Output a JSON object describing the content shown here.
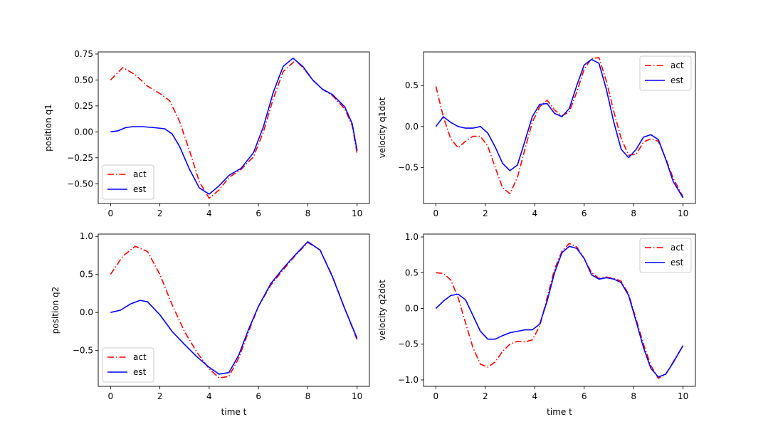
{
  "chart_data": [
    {
      "type": "line",
      "title": "",
      "xlabel": "",
      "ylabel": "position q1",
      "xlim": [
        -0.5,
        10.5
      ],
      "ylim": [
        -0.69,
        0.77
      ],
      "xticks": [
        0,
        2,
        4,
        6,
        8,
        10
      ],
      "xtick_labels": [
        "0",
        "2",
        "4",
        "6",
        "8",
        "10"
      ],
      "yticks": [
        -0.5,
        -0.25,
        0.0,
        0.25,
        0.5,
        0.75
      ],
      "ytick_labels": [
        "−0.50",
        "−0.25",
        "0.00",
        "0.25",
        "0.50",
        "0.75"
      ],
      "grid": false,
      "legend": "lower-left",
      "series": [
        {
          "name": "act",
          "color": "#ff0000",
          "style": "dashdot",
          "x": [
            0,
            0.5,
            1.0,
            1.5,
            2.0,
            2.4,
            2.8,
            3.2,
            3.6,
            4.0,
            4.4,
            4.8,
            5.3,
            5.8,
            6.2,
            6.6,
            7.0,
            7.5,
            7.8,
            8.2,
            8.6,
            9.0,
            9.5,
            9.8,
            10.0
          ],
          "y": [
            0.5,
            0.62,
            0.55,
            0.44,
            0.37,
            0.3,
            0.1,
            -0.18,
            -0.48,
            -0.64,
            -0.56,
            -0.44,
            -0.36,
            -0.24,
            0.0,
            0.32,
            0.58,
            0.69,
            0.62,
            0.5,
            0.41,
            0.35,
            0.22,
            0.06,
            -0.21
          ]
        },
        {
          "name": "est",
          "color": "#0000ff",
          "style": "solid",
          "x": [
            0,
            0.3,
            0.6,
            0.9,
            1.3,
            1.8,
            2.2,
            2.5,
            2.8,
            3.2,
            3.6,
            4.0,
            4.4,
            4.8,
            5.3,
            5.8,
            6.2,
            6.6,
            7.0,
            7.4,
            7.8,
            8.2,
            8.6,
            9.0,
            9.5,
            9.8,
            10.0
          ],
          "y": [
            0.0,
            0.01,
            0.04,
            0.05,
            0.05,
            0.04,
            0.03,
            -0.02,
            -0.14,
            -0.36,
            -0.54,
            -0.6,
            -0.52,
            -0.42,
            -0.35,
            -0.2,
            0.05,
            0.38,
            0.63,
            0.71,
            0.63,
            0.5,
            0.41,
            0.36,
            0.24,
            0.08,
            -0.18
          ]
        }
      ]
    },
    {
      "type": "line",
      "title": "",
      "xlabel": "",
      "ylabel": "velocity q1dot",
      "xlim": [
        -0.5,
        10.5
      ],
      "ylim": [
        -0.94,
        0.91
      ],
      "xticks": [
        0,
        2,
        4,
        6,
        8,
        10
      ],
      "xtick_labels": [
        "0",
        "2",
        "4",
        "6",
        "8",
        "10"
      ],
      "yticks": [
        -0.5,
        0.0,
        0.5
      ],
      "ytick_labels": [
        "−0.5",
        "0.0",
        "0.5"
      ],
      "grid": false,
      "legend": "upper-right",
      "series": [
        {
          "name": "act",
          "color": "#ff0000",
          "style": "dashdot",
          "x": [
            0,
            0.3,
            0.6,
            0.9,
            1.2,
            1.5,
            1.8,
            2.1,
            2.4,
            2.7,
            3.0,
            3.3,
            3.6,
            3.9,
            4.2,
            4.5,
            4.8,
            5.1,
            5.4,
            5.7,
            6.0,
            6.3,
            6.6,
            6.9,
            7.2,
            7.5,
            7.8,
            8.1,
            8.4,
            8.7,
            9.0,
            9.3,
            9.6,
            10.0
          ],
          "y": [
            0.49,
            0.12,
            -0.15,
            -0.26,
            -0.18,
            -0.12,
            -0.12,
            -0.24,
            -0.5,
            -0.75,
            -0.82,
            -0.62,
            -0.28,
            0.05,
            0.24,
            0.32,
            0.2,
            0.13,
            0.18,
            0.42,
            0.7,
            0.83,
            0.84,
            0.55,
            0.18,
            -0.15,
            -0.35,
            -0.34,
            -0.19,
            -0.15,
            -0.18,
            -0.39,
            -0.63,
            -0.86
          ]
        },
        {
          "name": "est",
          "color": "#0000ff",
          "style": "solid",
          "x": [
            0,
            0.3,
            0.6,
            0.9,
            1.2,
            1.5,
            1.8,
            2.1,
            2.4,
            2.7,
            3.0,
            3.3,
            3.6,
            3.9,
            4.2,
            4.5,
            4.8,
            5.1,
            5.4,
            5.7,
            6.0,
            6.3,
            6.6,
            6.9,
            7.2,
            7.5,
            7.8,
            8.1,
            8.4,
            8.7,
            9.0,
            9.3,
            9.6,
            10.0
          ],
          "y": [
            0.0,
            0.12,
            0.05,
            0.0,
            -0.02,
            -0.02,
            0.0,
            -0.08,
            -0.25,
            -0.45,
            -0.54,
            -0.47,
            -0.18,
            0.12,
            0.27,
            0.28,
            0.16,
            0.12,
            0.22,
            0.5,
            0.75,
            0.82,
            0.77,
            0.45,
            0.05,
            -0.28,
            -0.38,
            -0.28,
            -0.13,
            -0.1,
            -0.16,
            -0.4,
            -0.67,
            -0.87
          ]
        }
      ]
    },
    {
      "type": "line",
      "title": "",
      "xlabel": "time t",
      "ylabel": "position q2",
      "xlim": [
        -0.5,
        10.5
      ],
      "ylim": [
        -0.97,
        1.03
      ],
      "xticks": [
        0,
        2,
        4,
        6,
        8,
        10
      ],
      "xtick_labels": [
        "0",
        "2",
        "4",
        "6",
        "8",
        "10"
      ],
      "yticks": [
        -0.5,
        0.0,
        0.5,
        1.0
      ],
      "ytick_labels": [
        "−0.5",
        "0.0",
        "0.5",
        "1.0"
      ],
      "grid": false,
      "legend": "lower-left",
      "series": [
        {
          "name": "act",
          "color": "#ff0000",
          "style": "dashdot",
          "x": [
            0,
            0.5,
            1.0,
            1.5,
            2.0,
            2.5,
            3.0,
            3.5,
            4.0,
            4.4,
            4.8,
            5.2,
            5.6,
            6.0,
            6.5,
            7.0,
            7.5,
            8.0,
            8.5,
            9.0,
            9.5,
            10.0
          ],
          "y": [
            0.5,
            0.74,
            0.87,
            0.8,
            0.5,
            0.1,
            -0.25,
            -0.52,
            -0.74,
            -0.86,
            -0.84,
            -0.6,
            -0.25,
            0.08,
            0.36,
            0.56,
            0.75,
            0.92,
            0.82,
            0.48,
            0.05,
            -0.36
          ]
        },
        {
          "name": "est",
          "color": "#0000ff",
          "style": "solid",
          "x": [
            0,
            0.4,
            0.8,
            1.2,
            1.5,
            2.0,
            2.5,
            3.0,
            3.5,
            4.0,
            4.4,
            4.8,
            5.2,
            5.6,
            6.0,
            6.5,
            7.0,
            7.5,
            8.0,
            8.5,
            9.0,
            9.5,
            10.0
          ],
          "y": [
            0.0,
            0.03,
            0.11,
            0.16,
            0.14,
            -0.03,
            -0.25,
            -0.42,
            -0.58,
            -0.72,
            -0.81,
            -0.79,
            -0.56,
            -0.22,
            0.08,
            0.38,
            0.58,
            0.76,
            0.93,
            0.82,
            0.47,
            0.05,
            -0.34
          ]
        }
      ]
    },
    {
      "type": "line",
      "title": "",
      "xlabel": "time t",
      "ylabel": "velocity q2dot",
      "xlim": [
        -0.5,
        10.5
      ],
      "ylim": [
        -1.09,
        1.04
      ],
      "xticks": [
        0,
        2,
        4,
        6,
        8,
        10
      ],
      "xtick_labels": [
        "0",
        "2",
        "4",
        "6",
        "8",
        "10"
      ],
      "yticks": [
        -1.0,
        -0.5,
        0.0,
        0.5,
        1.0
      ],
      "ytick_labels": [
        "−1.0",
        "−0.5",
        "0.0",
        "0.5",
        "1.0"
      ],
      "grid": false,
      "legend": "upper-right",
      "series": [
        {
          "name": "act",
          "color": "#ff0000",
          "style": "dashdot",
          "x": [
            0,
            0.3,
            0.6,
            0.9,
            1.2,
            1.5,
            1.8,
            2.1,
            2.4,
            2.7,
            3.0,
            3.3,
            3.6,
            3.9,
            4.2,
            4.5,
            4.8,
            5.1,
            5.4,
            5.7,
            6.0,
            6.3,
            6.6,
            6.9,
            7.2,
            7.5,
            7.8,
            8.1,
            8.4,
            8.7,
            9.0,
            9.3,
            9.6,
            10.0
          ],
          "y": [
            0.5,
            0.49,
            0.4,
            0.15,
            -0.2,
            -0.55,
            -0.78,
            -0.82,
            -0.75,
            -0.6,
            -0.5,
            -0.46,
            -0.47,
            -0.44,
            -0.25,
            0.15,
            0.55,
            0.8,
            0.91,
            0.86,
            0.7,
            0.5,
            0.42,
            0.44,
            0.42,
            0.38,
            0.2,
            -0.15,
            -0.5,
            -0.8,
            -0.98,
            -0.92,
            -0.75,
            -0.52
          ]
        },
        {
          "name": "est",
          "color": "#0000ff",
          "style": "solid",
          "x": [
            0,
            0.3,
            0.6,
            0.9,
            1.2,
            1.5,
            1.8,
            2.1,
            2.4,
            2.7,
            3.0,
            3.3,
            3.6,
            3.9,
            4.2,
            4.5,
            4.8,
            5.1,
            5.4,
            5.7,
            6.0,
            6.3,
            6.6,
            6.9,
            7.2,
            7.5,
            7.8,
            8.1,
            8.4,
            8.7,
            9.0,
            9.3,
            9.6,
            10.0
          ],
          "y": [
            0.0,
            0.1,
            0.18,
            0.2,
            0.12,
            -0.1,
            -0.32,
            -0.43,
            -0.43,
            -0.38,
            -0.34,
            -0.32,
            -0.3,
            -0.3,
            -0.22,
            0.1,
            0.5,
            0.78,
            0.87,
            0.84,
            0.7,
            0.47,
            0.41,
            0.43,
            0.41,
            0.36,
            0.18,
            -0.18,
            -0.55,
            -0.84,
            -0.96,
            -0.92,
            -0.76,
            -0.52
          ]
        }
      ]
    }
  ]
}
